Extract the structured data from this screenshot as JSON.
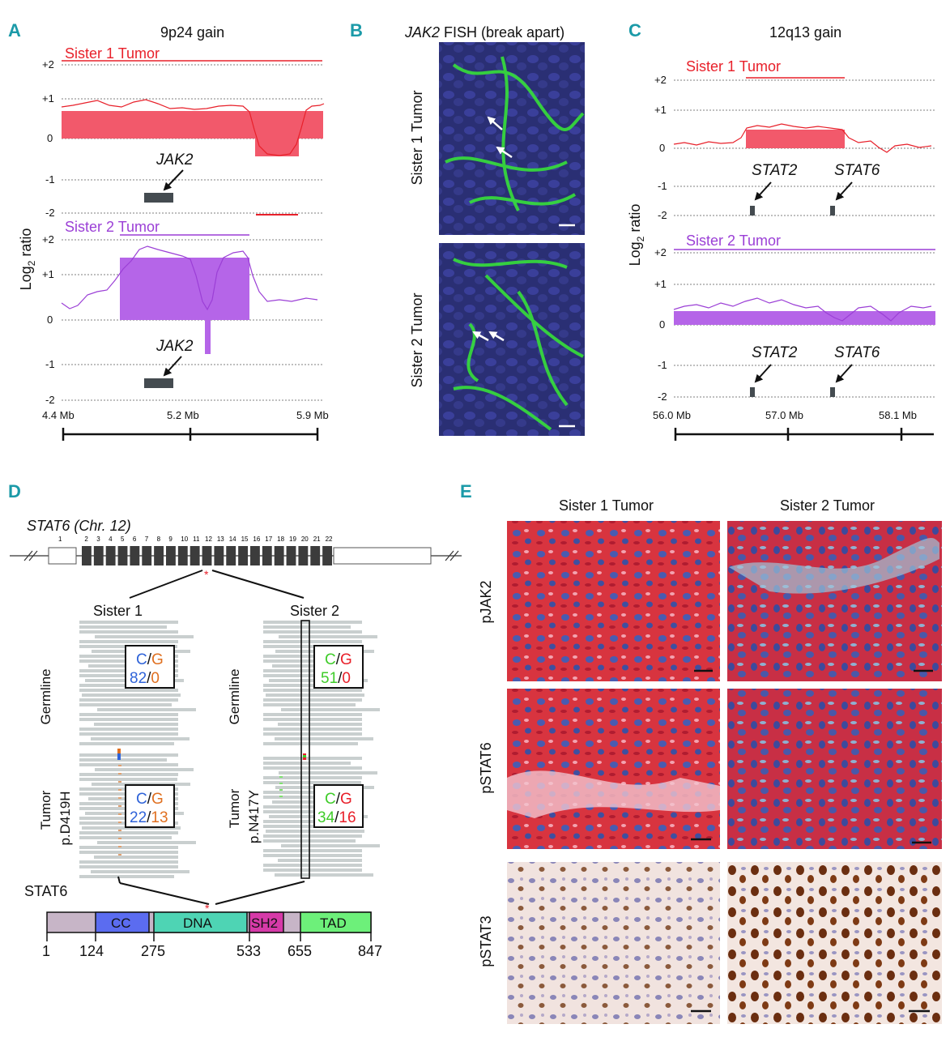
{
  "panels": {
    "A": {
      "letter": "A",
      "title": "9p24 gain",
      "ylabel": "Log",
      "ylabel_sub": "2",
      "ylabel_rest": " ratio",
      "sister1": "Sister 1 Tumor",
      "sister2": "Sister 2 Tumor",
      "gene": "JAK2",
      "ticks1": [
        "+2",
        "+1",
        "0",
        "-1",
        "-2"
      ],
      "ticks2": [
        "+2",
        "+1",
        "0",
        "-1",
        "-2"
      ],
      "xticks": [
        "4.4 Mb",
        "5.2 Mb",
        "5.9 Mb"
      ]
    },
    "B": {
      "letter": "B",
      "title_gene": "JAK2",
      "title_rest": " FISH (break apart)",
      "row1": "Sister 1 Tumor",
      "row2": "Sister 2 Tumor"
    },
    "C": {
      "letter": "C",
      "title": "12q13 gain",
      "ylabel": "Log",
      "ylabel_sub": "2",
      "ylabel_rest": " ratio",
      "sister1": "Sister 1 Tumor",
      "sister2": "Sister 2 Tumor",
      "gene1": "STAT2",
      "gene2": "STAT6",
      "ticks": [
        "+2",
        "+1",
        "0",
        "-1",
        "-2"
      ],
      "xticks": [
        "56.0 Mb",
        "57.0 Mb",
        "58.1 Mb"
      ]
    },
    "D": {
      "letter": "D",
      "gene_title": "STAT6 (Chr. 12)",
      "exons": [
        "1",
        "2",
        "3",
        "4",
        "5",
        "6",
        "7",
        "8",
        "9",
        "10",
        "11",
        "12",
        "13",
        "14",
        "15",
        "16",
        "17",
        "18",
        "19",
        "20",
        "21",
        "22"
      ],
      "sister1": "Sister 1",
      "sister2": "Sister 2",
      "germline": "Germline",
      "tumor": "Tumor",
      "mut1": "p.D419H",
      "mut2": "p.N417Y",
      "s1_germ_alleles": [
        "C",
        "/",
        "G"
      ],
      "s1_germ_counts": [
        "82",
        "/",
        "0"
      ],
      "s1_tum_alleles": [
        "C",
        "/",
        "G"
      ],
      "s1_tum_counts": [
        "22",
        "/",
        "13"
      ],
      "s2_germ_alleles": [
        "C",
        "/",
        "G"
      ],
      "s2_germ_counts": [
        "51",
        "/",
        "0"
      ],
      "s2_tum_alleles": [
        "C",
        "/",
        "G"
      ],
      "s2_tum_counts": [
        "34",
        "/",
        "16"
      ],
      "protein": "STAT6",
      "domains": [
        "CC",
        "DNA",
        "SH2",
        "TAD"
      ],
      "positions": [
        "1",
        "124",
        "275",
        "533",
        "655",
        "847"
      ],
      "star": "*"
    },
    "E": {
      "letter": "E",
      "col1": "Sister 1 Tumor",
      "col2": "Sister 2 Tumor",
      "rows": [
        "pJAK2",
        "pSTAT6",
        "pSTAT3"
      ]
    }
  },
  "colors": {
    "teal": "#1b9aa8",
    "red": "#e8202a",
    "pink": "#f2596b",
    "purple": "#9b3fd6",
    "violet": "#b565e8",
    "blue": "#2f63d8",
    "orange": "#e07020",
    "green": "#3fcc2a",
    "cc": "#5b6cf0",
    "dna": "#4ed4b4",
    "sh2": "#d63aa8",
    "tad": "#6df07a",
    "grey": "#c7b5c7"
  }
}
